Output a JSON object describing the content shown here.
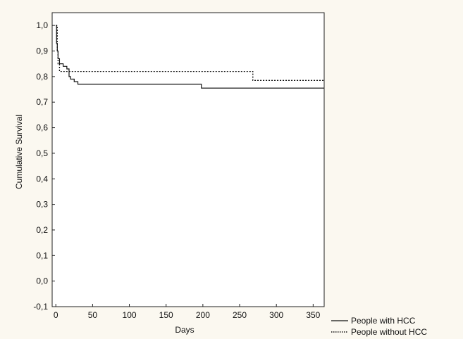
{
  "chart_data": {
    "type": "line",
    "title": "",
    "xlabel": "Days",
    "ylabel": "Cumulative Survival",
    "xlim": [
      -5,
      365
    ],
    "ylim": [
      -0.1,
      1.05
    ],
    "x_ticks": [
      0,
      50,
      100,
      150,
      200,
      250,
      300,
      350
    ],
    "x_tick_labels": [
      "0",
      "50",
      "100",
      "150",
      "200",
      "250",
      "300",
      "350"
    ],
    "y_ticks": [
      1.0,
      0.9,
      0.8,
      0.7,
      0.6,
      0.5,
      0.4,
      0.3,
      0.2,
      0.1,
      0.0,
      -0.1
    ],
    "y_tick_labels": [
      "1,0",
      "0,9",
      "0,8",
      "0,7",
      "0,6",
      "0,5",
      "0,4",
      "0,3",
      "0,2",
      "0,1",
      "0,0",
      "-0,1"
    ],
    "grid": false,
    "legend_position": "bottom-right, outside plot",
    "series": [
      {
        "name": "People with HCC",
        "line_style": "solid",
        "color": "#111111",
        "steps": [
          [
            0,
            1.0
          ],
          [
            1,
            0.93
          ],
          [
            2,
            0.9
          ],
          [
            3,
            0.87
          ],
          [
            5,
            0.85
          ],
          [
            10,
            0.84
          ],
          [
            15,
            0.83
          ],
          [
            18,
            0.8
          ],
          [
            20,
            0.79
          ],
          [
            25,
            0.78
          ],
          [
            30,
            0.77
          ],
          [
            198,
            0.755
          ],
          [
            365,
            0.755
          ]
        ]
      },
      {
        "name": "People without HCC",
        "line_style": "dotted",
        "color": "#111111",
        "steps": [
          [
            0,
            1.0
          ],
          [
            2,
            0.9
          ],
          [
            3,
            0.85
          ],
          [
            5,
            0.82
          ],
          [
            268,
            0.785
          ],
          [
            365,
            0.785
          ]
        ]
      }
    ]
  }
}
